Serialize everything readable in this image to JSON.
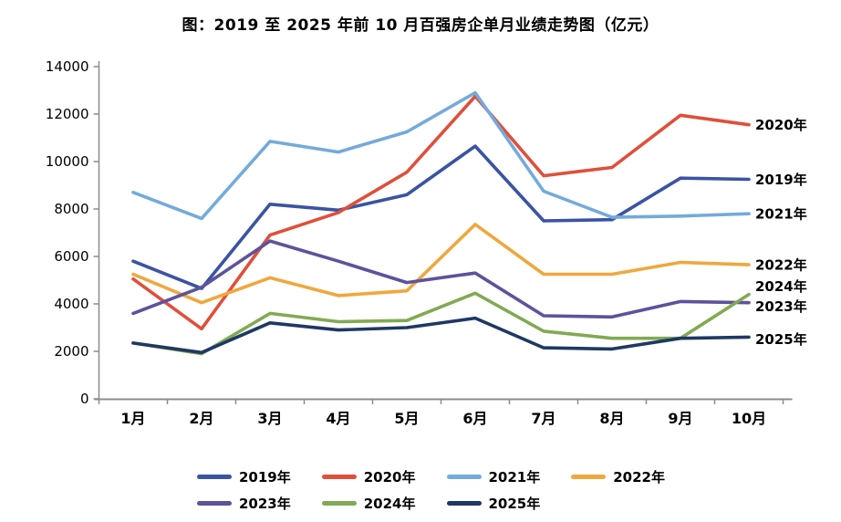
{
  "title": "图：2019 至 2025 年前 10 月百强房企单月业绩走势图（亿元）",
  "chart_data": {
    "type": "line",
    "title": "图：2019 至 2025 年前 10 月百强房企单月业绩走势图（亿元）",
    "unit": "亿元",
    "categories": [
      "1月",
      "2月",
      "3月",
      "4月",
      "5月",
      "6月",
      "7月",
      "8月",
      "9月",
      "10月"
    ],
    "series": [
      {
        "name": "2019年",
        "color": "#3A53A3",
        "values": [
          5800,
          4650,
          8200,
          7950,
          8600,
          10650,
          7500,
          7550,
          9300,
          9250
        ]
      },
      {
        "name": "2020年",
        "color": "#E04F3A",
        "values": [
          5050,
          2950,
          6900,
          7850,
          9550,
          12750,
          9400,
          9750,
          11950,
          11550
        ]
      },
      {
        "name": "2021年",
        "color": "#74AADB",
        "values": [
          8700,
          7600,
          10850,
          10400,
          11250,
          12900,
          8750,
          7650,
          7700,
          7800
        ]
      },
      {
        "name": "2022年",
        "color": "#F0A73E",
        "values": [
          5250,
          4050,
          5100,
          4350,
          4550,
          7350,
          5250,
          5250,
          5750,
          5650
        ]
      },
      {
        "name": "2023年",
        "color": "#5C539B",
        "values": [
          3600,
          4700,
          6650,
          5800,
          4900,
          5300,
          3500,
          3450,
          4100,
          4050
        ]
      },
      {
        "name": "2024年",
        "color": "#81AA53",
        "values": [
          2350,
          1900,
          3600,
          3250,
          3300,
          4450,
          2850,
          2550,
          2550,
          4400
        ]
      },
      {
        "name": "2025年",
        "color": "#1F3864",
        "values": [
          2350,
          1950,
          3200,
          2900,
          3000,
          3400,
          2150,
          2100,
          2550,
          2600
        ]
      }
    ],
    "ylim": [
      0,
      14000
    ],
    "yticks": [
      0,
      2000,
      4000,
      6000,
      8000,
      10000,
      12000,
      14000
    ],
    "grid": false,
    "legend_position": "bottom",
    "axis_color": "#8C8C8C",
    "text_color": "#000000",
    "end_labels": [
      "2020年",
      "2019年",
      "2021年",
      "2022年",
      "2024年",
      "2023年",
      "2025年"
    ]
  },
  "legend": {
    "rows": [
      [
        "2019年",
        "2020年",
        "2021年",
        "2022年"
      ],
      [
        "2023年",
        "2024年",
        "2025年"
      ]
    ]
  }
}
